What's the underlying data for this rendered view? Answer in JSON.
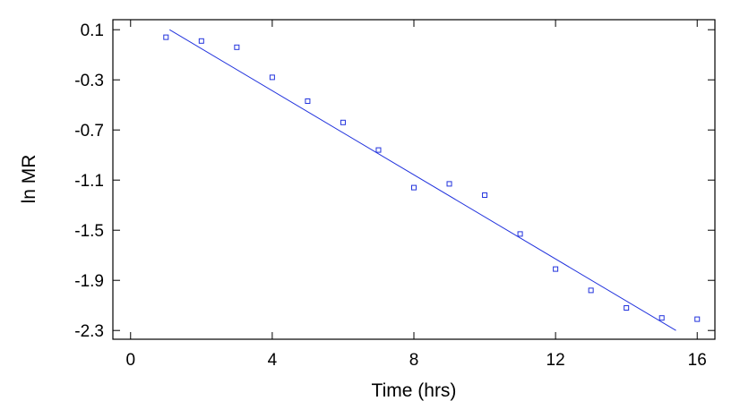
{
  "chart_data": {
    "type": "scatter",
    "xlabel": "Time (hrs)",
    "ylabel": "ln MR",
    "xlim": [
      -0.5,
      16.5
    ],
    "ylim": [
      -2.37,
      0.18
    ],
    "x_ticks": [
      0,
      4,
      8,
      12,
      16
    ],
    "x_tick_labels": [
      "0",
      "4",
      "8",
      "12",
      "16"
    ],
    "y_ticks": [
      0.1,
      -0.3,
      -0.7,
      -1.1,
      -1.5,
      -1.9,
      -2.3
    ],
    "y_tick_labels": [
      "0.1",
      "-0.3",
      "-0.7",
      "-1.1",
      "-1.5",
      "-1.9",
      "-2.3"
    ],
    "grid": false,
    "series": [
      {
        "type": "scatter",
        "marker": "square",
        "color": "#2233dd",
        "x": [
          1,
          2,
          3,
          4,
          5,
          6,
          7,
          8,
          9,
          10,
          11,
          12,
          13,
          14,
          15,
          16
        ],
        "y": [
          0.04,
          0.01,
          -0.04,
          -0.28,
          -0.47,
          -0.64,
          -0.86,
          -1.16,
          -1.13,
          -1.22,
          -1.53,
          -1.81,
          -1.98,
          -2.12,
          -2.2,
          -2.21
        ]
      },
      {
        "type": "line",
        "color": "#2233dd",
        "x": [
          1.1,
          15.4
        ],
        "y": [
          0.1,
          -2.3
        ]
      }
    ]
  }
}
